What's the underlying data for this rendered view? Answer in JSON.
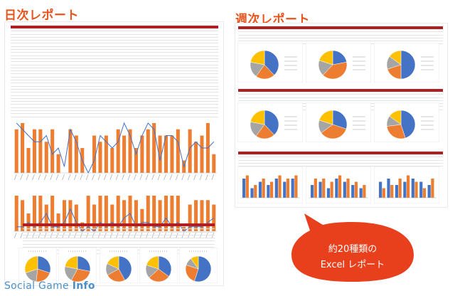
{
  "daily": {
    "title": "日次レポート"
  },
  "weekly": {
    "title": "週次レポート"
  },
  "callout": {
    "line1": "約20種類の",
    "line2": "Excel レポート"
  },
  "brand": {
    "prefix": "Social Game ",
    "suffix": "Info"
  },
  "colors": {
    "accent": "#e8541e",
    "header": "#b01e22",
    "bar_orange": "#ed7d31",
    "bar_blue": "#4472c4",
    "pie": [
      "#4472c4",
      "#ed7d31",
      "#a5a5a5",
      "#ffc000",
      "#5b9bd5",
      "#70ad47"
    ]
  },
  "chart_data": [
    {
      "type": "bar",
      "values": [
        7,
        8,
        4,
        7,
        7,
        5,
        7,
        3,
        0,
        7,
        6,
        4,
        0,
        6,
        5,
        6,
        4,
        7,
        6,
        7,
        4,
        6,
        7,
        8,
        6,
        6,
        6,
        7,
        2,
        7,
        5,
        6,
        8,
        3
      ],
      "line": [
        8,
        7,
        6,
        5,
        5,
        6,
        3,
        4,
        1,
        7,
        5,
        2,
        0,
        2,
        6,
        5,
        4,
        5,
        8,
        6,
        3,
        6,
        8,
        7,
        2,
        6,
        6,
        5,
        1,
        4,
        5,
        4,
        4,
        5
      ]
    },
    {
      "type": "bar",
      "values": [
        8,
        7,
        4,
        8,
        8,
        6,
        8,
        4,
        7,
        7,
        6,
        2,
        8,
        6,
        8,
        8,
        6,
        8,
        7,
        8,
        7,
        5,
        8,
        8,
        7,
        8,
        8,
        8,
        1,
        6,
        7,
        7,
        7,
        6
      ],
      "line": [
        1,
        1,
        2,
        1,
        2,
        4,
        1,
        1,
        2,
        5,
        2,
        0,
        1,
        0,
        2,
        1,
        2,
        1,
        3,
        4,
        1,
        2,
        2,
        1,
        1,
        3,
        1,
        2,
        0,
        1,
        1,
        1,
        2,
        3
      ]
    },
    {
      "type": "pie",
      "charts": [
        [
          30,
          22,
          18,
          30
        ],
        [
          28,
          30,
          20,
          22
        ],
        [
          42,
          25,
          15,
          18
        ],
        [
          35,
          28,
          17,
          20
        ],
        [
          55,
          25,
          10,
          10
        ],
        [
          38,
          22,
          18,
          22
        ],
        [
          22,
          40,
          18,
          20
        ],
        [
          50,
          20,
          15,
          15
        ],
        [
          38,
          22,
          18,
          22
        ],
        [
          30,
          35,
          15,
          20
        ],
        [
          45,
          28,
          12,
          15
        ]
      ]
    },
    {
      "type": "bar",
      "groups": [
        {
          "blue": [
            6,
            3,
            5,
            4,
            6,
            5,
            6
          ],
          "orange": [
            7,
            4,
            6,
            5,
            7,
            6,
            7
          ]
        },
        {
          "blue": [
            4,
            5,
            3,
            6,
            5,
            4,
            3
          ],
          "orange": [
            6,
            6,
            5,
            7,
            6,
            5,
            4
          ]
        },
        {
          "blue": [
            5,
            6,
            4,
            5,
            6,
            5,
            4
          ],
          "orange": [
            3,
            4,
            6,
            7,
            5,
            3,
            6
          ]
        }
      ]
    }
  ]
}
